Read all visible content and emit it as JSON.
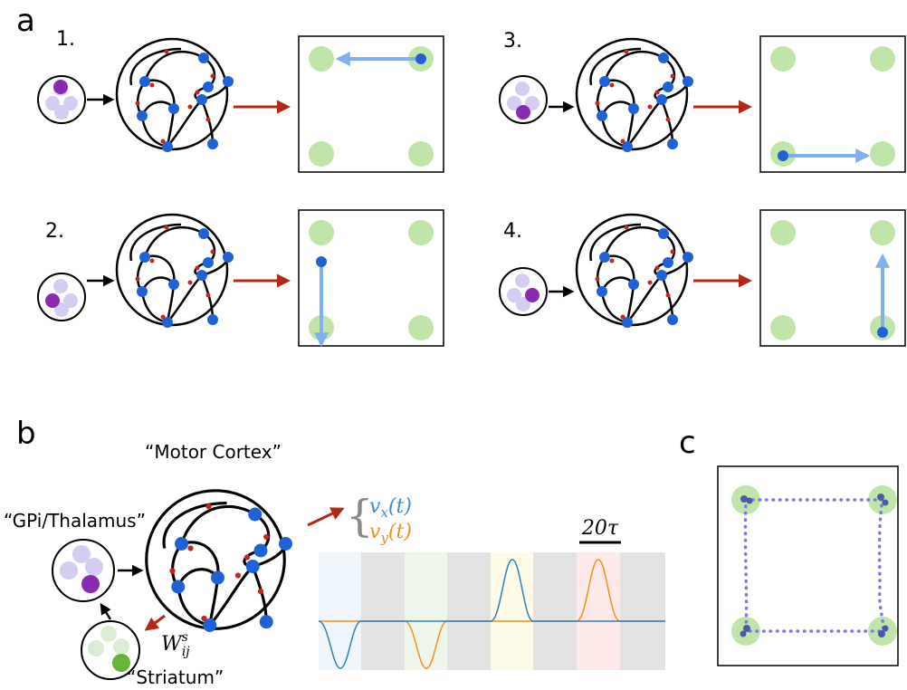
{
  "panel_labels": {
    "a": "a",
    "b": "b",
    "c": "c"
  },
  "steps": [
    "1.",
    "2.",
    "3.",
    "4."
  ],
  "labels": {
    "motor_cortex": "“Motor Cortex”",
    "gpi_thalamus": "“GPi/Thalamus”",
    "striatum": "“Striatum”"
  },
  "weight": {
    "base": "W",
    "sub": "ij",
    "sup": "s"
  },
  "outputs": [
    {
      "base": "v",
      "sub": "x",
      "arg": "(t)"
    },
    {
      "base": "v",
      "sub": "y",
      "arg": "(t)"
    }
  ],
  "scale_bar": "20τ"
}
